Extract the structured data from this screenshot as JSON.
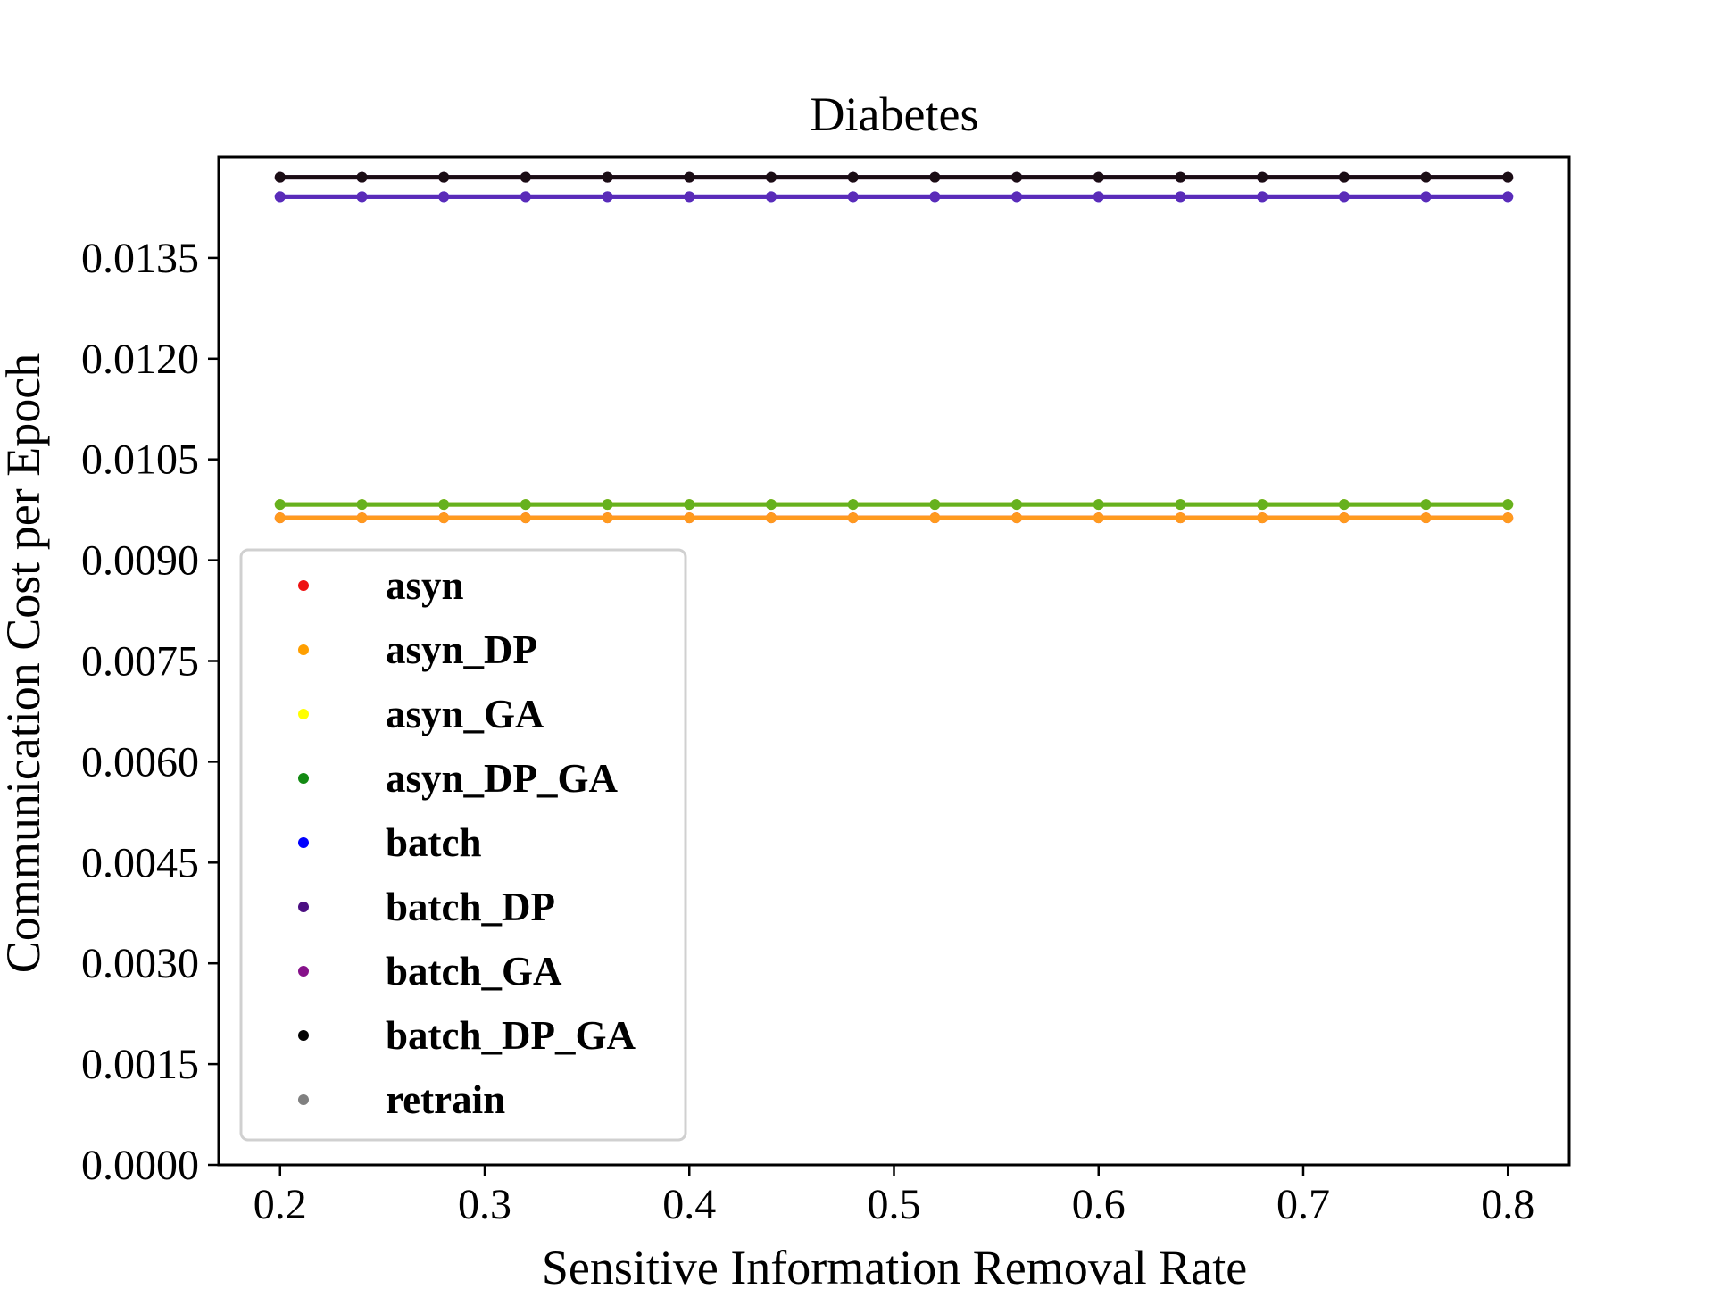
{
  "chart_data": {
    "type": "line",
    "title": "Diabetes",
    "xlabel": "Sensitive Information Removal Rate",
    "ylabel": "Communication Cost per Epoch",
    "xlim": [
      0.17,
      0.83
    ],
    "ylim": [
      0.0,
      0.015
    ],
    "xticks": [
      "0.2",
      "0.3",
      "0.4",
      "0.5",
      "0.6",
      "0.7",
      "0.8"
    ],
    "yticks": [
      "0.0000",
      "0.0015",
      "0.0030",
      "0.0045",
      "0.0060",
      "0.0075",
      "0.0090",
      "0.0105",
      "0.0120",
      "0.0135"
    ],
    "x": [
      0.2,
      0.24,
      0.28,
      0.32,
      0.36,
      0.4,
      0.44,
      0.48,
      0.52,
      0.56,
      0.6,
      0.64,
      0.68,
      0.72,
      0.76,
      0.8
    ],
    "grid": false,
    "legend_position": "lower-left",
    "series": [
      {
        "name": "asyn",
        "color": "#e41a1c",
        "value": 0.00963
      },
      {
        "name": "asyn_DP",
        "color": "#ff9a1e",
        "value": 0.00963
      },
      {
        "name": "asyn_GA",
        "color": "#c8c800",
        "value": 0.00983
      },
      {
        "name": "asyn_DP_GA",
        "color": "#66b11e",
        "value": 0.00983
      },
      {
        "name": "batch",
        "color": "#1f1fff",
        "value": 0.01441
      },
      {
        "name": "batch_DP",
        "color": "#5a2bb8",
        "value": 0.01441
      },
      {
        "name": "batch_GA",
        "color": "#6a1f6e",
        "value": 0.0147
      },
      {
        "name": "batch_DP_GA",
        "color": "#1a0d14",
        "value": 0.0147
      },
      {
        "name": "retrain",
        "color": "#808080",
        "value": null
      }
    ],
    "legend_marker_colors": [
      "#ee1111",
      "#ff9f00",
      "#ffff00",
      "#138a13",
      "#0000ff",
      "#4b0f82",
      "#86118a",
      "#000000",
      "#808080"
    ]
  }
}
